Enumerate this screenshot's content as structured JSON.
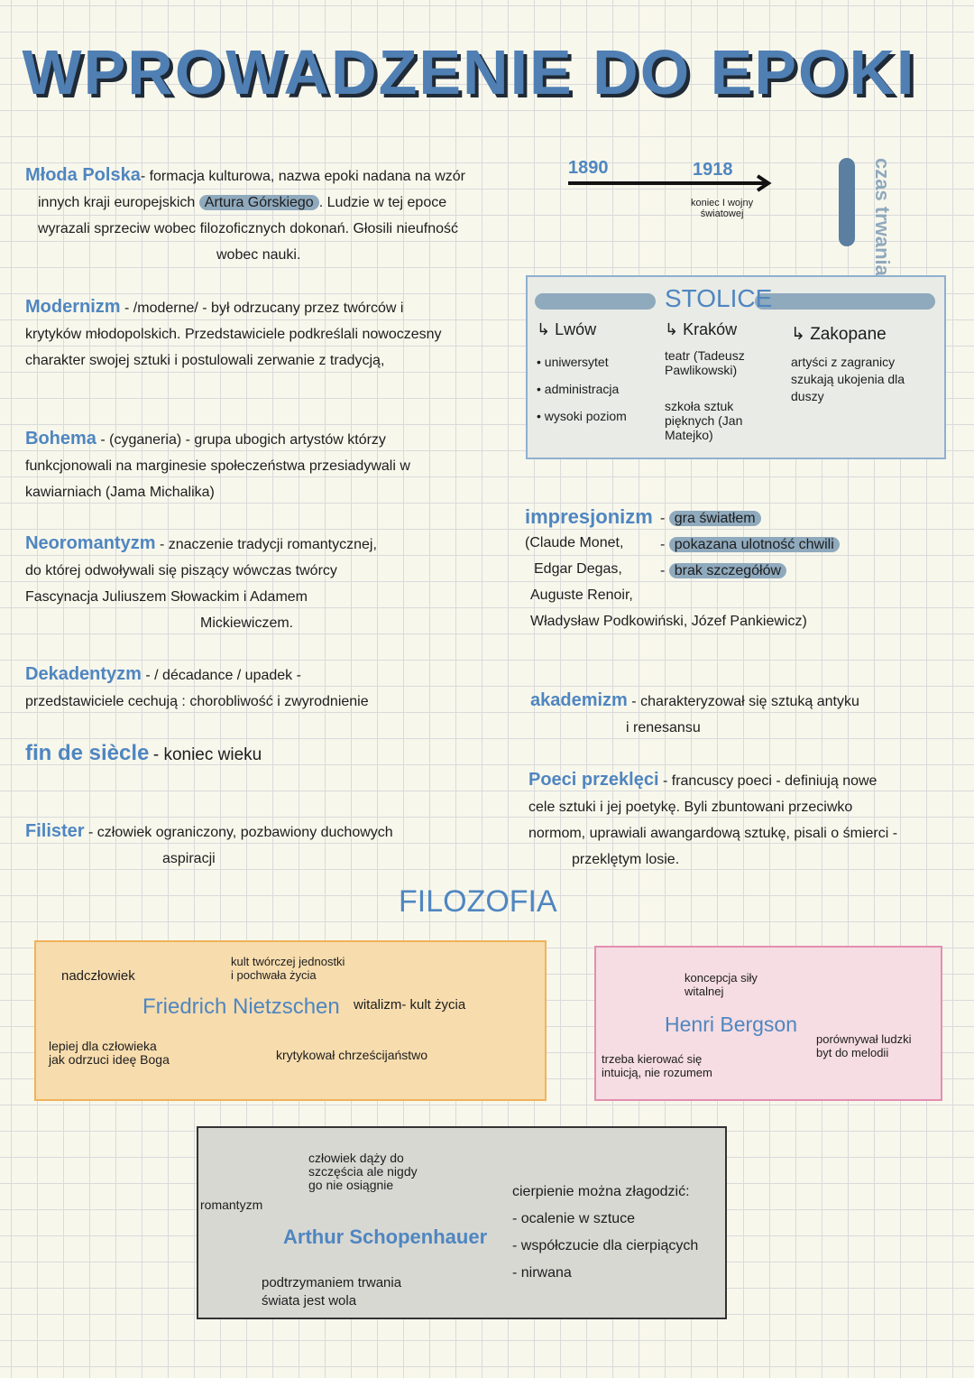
{
  "title": "WPROWADZENIE DO EPOKI",
  "definitions": {
    "mloda_polska": {
      "term": "Młoda Polska",
      "lines": [
        "- formacja kulturowa, nazwa epoki nadana na wzór",
        "innych kraji europejskich",
        "Artura Górskiego",
        ". Ludzie w tej epoce",
        "wyrazali sprzeciw wobec filozoficznych dokonań. Głosili nieufność",
        "wobec nauki."
      ]
    },
    "modernizm": {
      "term": "Modernizm",
      "lines": [
        "- /moderne/ - był odrzucany przez twórców i",
        "krytyków młodopolskich. Przedstawiciele podkreślali nowoczesny",
        "charakter swojej sztuki i postulowali zerwanie z tradycją,"
      ]
    },
    "bohema": {
      "term": "Bohema",
      "lines": [
        "- (cyganeria) - grupa ubogich artystów którzy",
        "funkcjonowali na marginesie społeczeństwa przesiadywali w",
        "kawiarniach (Jama Michalika)"
      ]
    },
    "neoromantyzm": {
      "term": "Neoromantyzm",
      "lines": [
        "- znaczenie tradycji romantycznej,",
        "do której odwoływali się piszący wówczas twórcy",
        "Fascynacja Juliuszem Słowackim i Adamem",
        "Mickiewiczem."
      ]
    },
    "dekadentyzm": {
      "term": "Dekadentyzm",
      "lines": [
        "- / décadance / upadek -",
        "przedstawiciele cechują : chorobliwość i zwyrodnienie"
      ]
    },
    "fin_de_siecle": {
      "term": "fin de siècle",
      "lines": [
        "- koniec wieku"
      ]
    },
    "filister": {
      "term": "Filister",
      "lines": [
        "- człowiek ograniczony, pozbawiony duchowych",
        "aspiracji"
      ]
    },
    "impresjonizm": {
      "term": "impresjonizm",
      "lines": [
        "(Claude Monet,",
        "Edgar Degas,",
        "Auguste Renoir,",
        "Władysław Podkowiński, Józef Pankiewicz)"
      ],
      "features": [
        "gra światłem",
        "pokazana ulotność chwili",
        "brak szczegółów"
      ]
    },
    "akademizm": {
      "term": "akademizm",
      "lines": [
        "- charakteryzował się sztuką antyku",
        "i renesansu"
      ]
    },
    "poeci_przekleci": {
      "term": "Poeci przeklęci",
      "lines": [
        "- francuscy poeci - definiują nowe",
        "cele sztuki i jej poetykę. Byli zbuntowani przeciwko",
        "normom, uprawiali awangardową sztukę, pisali o śmierci -",
        "przeklętym losie."
      ]
    }
  },
  "timeline": {
    "start": "1890",
    "end": "1918",
    "note": [
      "koniec I wojny",
      "światowej"
    ],
    "side_label": [
      "czas",
      "trwania"
    ]
  },
  "stolice": {
    "title": "STOLICE",
    "cities": [
      {
        "name": "Lwów",
        "items": [
          "uniwersytet",
          "administracja",
          "wysoki poziom"
        ]
      },
      {
        "name": "Kraków",
        "items": [
          "teatr (Tadeusz Pawlikowski)",
          "szkoła sztuk pięknych (Jan Matejko)"
        ]
      },
      {
        "name": "Zakopane",
        "items": [
          "artyści z zagranicy szukają ukojenia dla duszy"
        ]
      }
    ]
  },
  "filozofia": {
    "title": "FILOZOFIA",
    "nietzsche": {
      "name": "Friedrich Nietzschen",
      "notes": [
        "nadczłowiek",
        "kult twórczej jednostki",
        "i pochwała życia",
        "witalizm- kult życia",
        "lepiej dla człowieka",
        "jak odrzuci ideę Boga",
        "krytykował chrześcijaństwo"
      ]
    },
    "bergson": {
      "name": "Henri Bergson",
      "notes": [
        "koncepcja siły",
        "witalnej",
        "porównywał ludzki",
        "byt do melodii",
        "trzeba kierować się",
        "intuicją, nie rozumem"
      ]
    },
    "schopenhauer": {
      "name": "Arthur Schopenhauer",
      "notes": [
        "człowiek dąży do",
        "szczęścia ale nigdy",
        "go nie osiągnie",
        "romantyzm",
        "podtrzymaniem trwania",
        "świata jest wola"
      ],
      "suffering": {
        "heading": "cierpienie można złagodzić:",
        "items": [
          "- ocalenie w sztuce",
          "- współczucie dla cierpiących",
          "- nirwana"
        ]
      }
    }
  },
  "colors": {
    "accent": "#4f86c0",
    "highlight": "#8fa9bd",
    "nietzsche_box": "#f7dcae",
    "bergson_box": "#f5dde3",
    "schopenhauer_box": "#d8d8d3"
  }
}
